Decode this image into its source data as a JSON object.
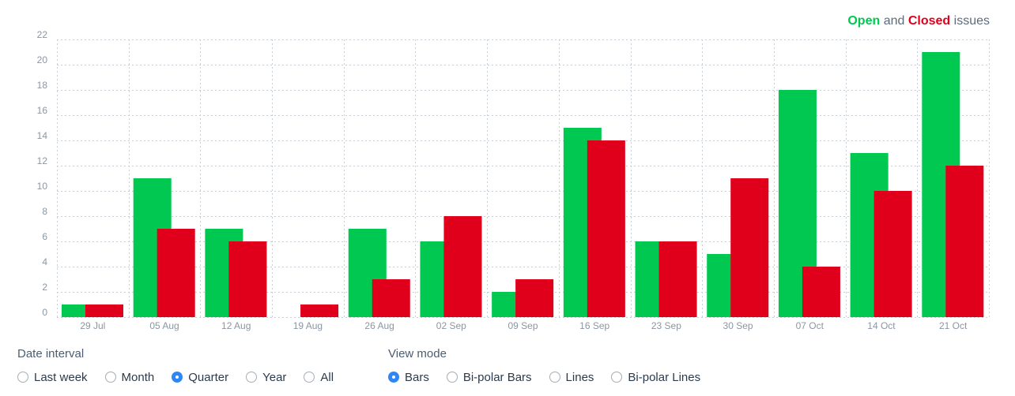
{
  "legend": {
    "open": "Open",
    "and": "and",
    "closed": "Closed",
    "issues": "issues"
  },
  "colors": {
    "open": "#00c851",
    "closed": "#e0001b",
    "accent": "#2f86f6"
  },
  "chart_data": {
    "type": "bar",
    "categories": [
      "29 Jul",
      "05 Aug",
      "12 Aug",
      "19 Aug",
      "26 Aug",
      "02 Sep",
      "09 Sep",
      "16 Sep",
      "23 Sep",
      "30 Sep",
      "07 Oct",
      "14 Oct",
      "21 Oct"
    ],
    "series": [
      {
        "name": "Open",
        "values": [
          1,
          11,
          7,
          0,
          7,
          6,
          2,
          15,
          6,
          5,
          18,
          13,
          21
        ]
      },
      {
        "name": "Closed",
        "values": [
          1,
          7,
          6,
          1,
          3,
          8,
          3,
          14,
          6,
          11,
          4,
          10,
          12
        ]
      }
    ],
    "yticks": [
      0,
      2,
      4,
      6,
      8,
      10,
      12,
      14,
      16,
      18,
      20,
      22
    ],
    "ylim": [
      0,
      22
    ],
    "grid": true,
    "legend_position": "top-right",
    "title": "",
    "xlabel": "",
    "ylabel": ""
  },
  "controls": {
    "date_interval": {
      "title": "Date interval",
      "options": [
        "Last week",
        "Month",
        "Quarter",
        "Year",
        "All"
      ],
      "selected": "Quarter"
    },
    "view_mode": {
      "title": "View mode",
      "options": [
        "Bars",
        "Bi-polar Bars",
        "Lines",
        "Bi-polar Lines"
      ],
      "selected": "Bars"
    }
  }
}
